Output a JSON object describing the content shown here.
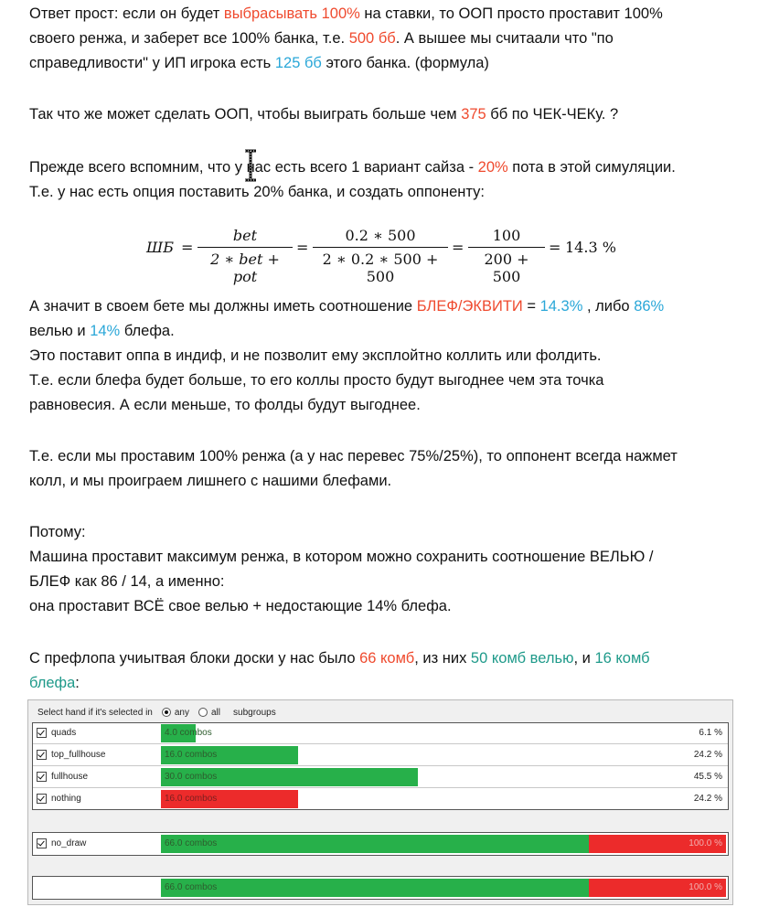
{
  "p1": {
    "a": "Ответ прост: если он будет ",
    "b": "выбрасывать 100%",
    "c": " на ставки, то ООП просто проставит 100%",
    "d": "своего ренжа, и заберет все 100% банка, т.е. ",
    "e": "500 бб",
    "f": ". А вышее мы считаали что \"по",
    "g": "справедливости\" у ИП игрока есть ",
    "h": "125 бб",
    "i": " этого банка. (формула)"
  },
  "p2": {
    "a": "Так что же может сделать ООП, чтобы выиграть больше чем ",
    "b": "375",
    "c": " бб по ЧЕК-ЧЕКу. ?"
  },
  "p3": {
    "a": "Прежде всего вспомним, что у нас есть всего 1 вариант сайза - ",
    "b": "20%",
    "c": " пота в этой симуляции.",
    "d": "Т.е. у нас есть опция поставить 20% банка, и создать оппоненту:"
  },
  "formula": {
    "lhs": "ШБ",
    "eq": "=",
    "f1_num": "bet",
    "f1_den": "2 ∗ bet + pot",
    "f2_num": "0.2 ∗ 500",
    "f2_den": "2 ∗ 0.2 ∗ 500 + 500",
    "f3_num": "100",
    "f3_den": "200 + 500",
    "result": "14.3 %"
  },
  "p4": {
    "a": "А значит в своем бете мы должны иметь соотношение ",
    "b": "БЛЕФ/ЭКВИТИ",
    "c": " = ",
    "d": "14.3%",
    "e": " , либо ",
    "f": "86%",
    "g": "велью и ",
    "h": "14%",
    "i": " блефа.",
    "j": "Это поставит оппа в индиф, и не позволит ему эксплойтно коллить или фолдить.",
    "k": "Т.е. если блефа будет больше, то его коллы просто будут выгоднее чем эта точка",
    "l": "равновесия. А если меньше, то фолды будут выгоднее."
  },
  "p5": {
    "a": "Т.е. если мы проставим 100% ренжа (а у нас перевес 75%/25%), то оппонент всегда нажмет",
    "b": "колл, и мы проиграем лишнего с нашими блефами."
  },
  "p6": {
    "a": "Потому:",
    "b": "Машина проставит максимум ренжа, в котором можно сохранить соотношение ВЕЛЬЮ /",
    "c": "БЛЕФ как 86 / 14, а именно:",
    "d": "она проставит ВСЁ свое велью + недостающие 14% блефа."
  },
  "p7": {
    "a": "С префлопа учиытвая блоки доски у нас было ",
    "b": "66 комб",
    "c": ", из них ",
    "d": "50 комб велью",
    "e": ", и ",
    "f": "16 комб",
    "g": "блефа",
    "h": ":"
  },
  "widget": {
    "header_label": "Select hand if it's selected in",
    "opt_any": "any",
    "opt_all": "all",
    "subgroups": "subgroups",
    "rows": [
      {
        "name": "quads",
        "label": "4.0 combos",
        "pct": "6.1 %"
      },
      {
        "name": "top_fullhouse",
        "label": "16.0 combos",
        "pct": "24.2 %"
      },
      {
        "name": "fullhouse",
        "label": "30.0 combos",
        "pct": "45.5 %"
      },
      {
        "name": "nothing",
        "label": "16.0 combos",
        "pct": "24.2 %"
      }
    ],
    "draw_row": {
      "name": "no_draw",
      "label": "66.0 combos",
      "pct": "100.0 %"
    },
    "total_row": {
      "label": "66.0 combos",
      "pct": "100.0 %"
    }
  },
  "chart_data": {
    "type": "bar",
    "categories": [
      "quads",
      "top_fullhouse",
      "fullhouse",
      "nothing"
    ],
    "values": [
      4.0,
      16.0,
      30.0,
      16.0
    ],
    "percents": [
      6.1,
      24.2,
      45.5,
      24.2
    ],
    "total": 66.0,
    "colors": {
      "value": "#27b04a",
      "bluff": "#ec2b2b"
    }
  }
}
